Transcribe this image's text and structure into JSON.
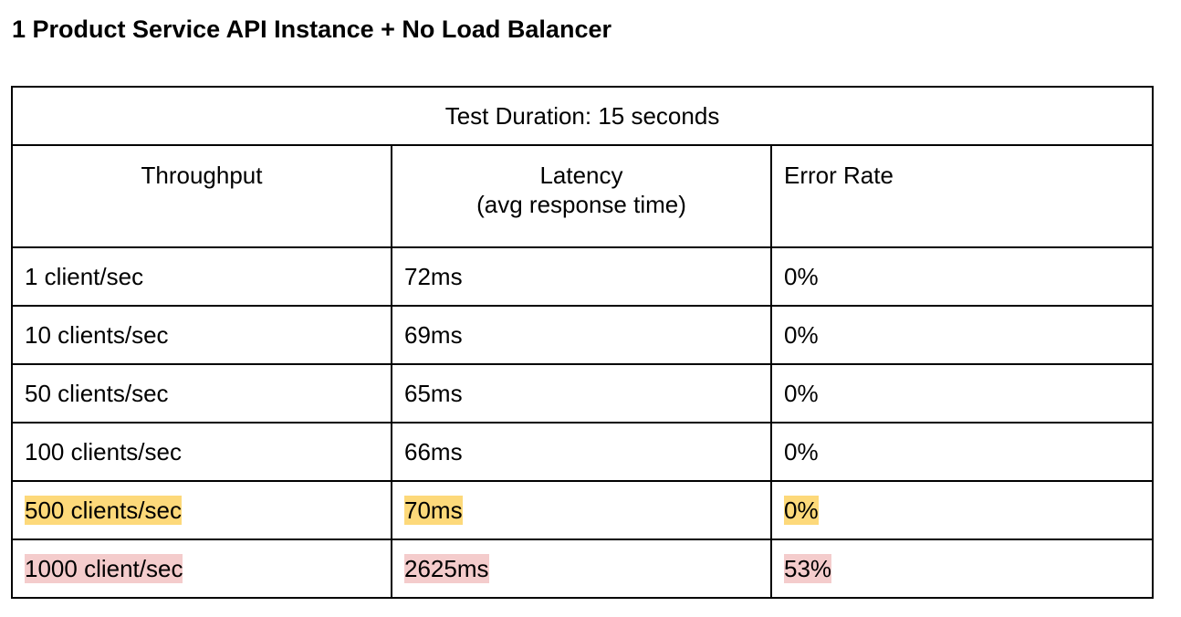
{
  "page": {
    "title": "1 Product Service API Instance + No Load Balancer"
  },
  "table": {
    "duration": "Test Duration: 15 seconds",
    "headers": {
      "throughput": "Throughput",
      "latency_line1": "Latency",
      "latency_line2": "(avg response time)",
      "error_rate": "Error Rate"
    },
    "rows": [
      {
        "throughput": "1 client/sec",
        "latency": "72ms",
        "error_rate": "0%",
        "highlight": "none"
      },
      {
        "throughput": "10 clients/sec",
        "latency": "69ms",
        "error_rate": "0%",
        "highlight": "none"
      },
      {
        "throughput": "50 clients/sec",
        "latency": "65ms",
        "error_rate": "0%",
        "highlight": "none"
      },
      {
        "throughput": "100 clients/sec",
        "latency": "66ms",
        "error_rate": "0%",
        "highlight": "none"
      },
      {
        "throughput": "500 clients/sec",
        "latency": "70ms",
        "error_rate": "0%",
        "highlight": "yellow"
      },
      {
        "throughput": "1000 client/sec",
        "latency": "2625ms",
        "error_rate": "53%",
        "highlight": "pink"
      }
    ]
  },
  "colors": {
    "highlight_yellow": "#fdd97a",
    "highlight_pink": "#f4cccc",
    "border": "#000000",
    "text": "#000000",
    "background": "#ffffff"
  }
}
